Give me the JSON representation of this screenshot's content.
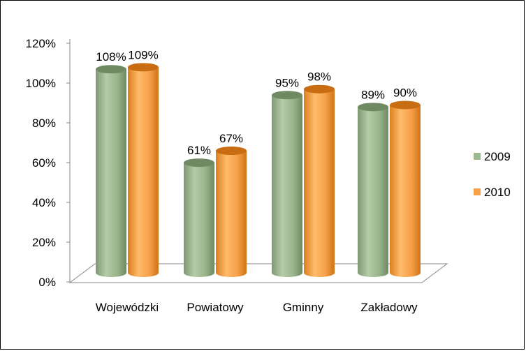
{
  "chart_data": {
    "type": "bar",
    "title": "",
    "xlabel": "",
    "ylabel": "",
    "categories": [
      "Wojewódzki",
      "Powiatowy",
      "Gminny",
      "Zakładowy"
    ],
    "series": [
      {
        "name": "2009",
        "values": [
          108,
          61,
          95,
          89
        ],
        "labels": [
          "108%",
          "61%",
          "95%",
          "89%"
        ],
        "color": "#9bb88e"
      },
      {
        "name": "2010",
        "values": [
          109,
          67,
          98,
          90
        ],
        "labels": [
          "109%",
          "67%",
          "98%",
          "90%"
        ],
        "color": "#f6a04a"
      }
    ],
    "yticks": [
      "0%",
      "20%",
      "40%",
      "60%",
      "80%",
      "100%",
      "120%"
    ],
    "ylim": [
      0,
      120
    ],
    "grid": false,
    "legend": "right",
    "style": "3d-cylinder"
  }
}
